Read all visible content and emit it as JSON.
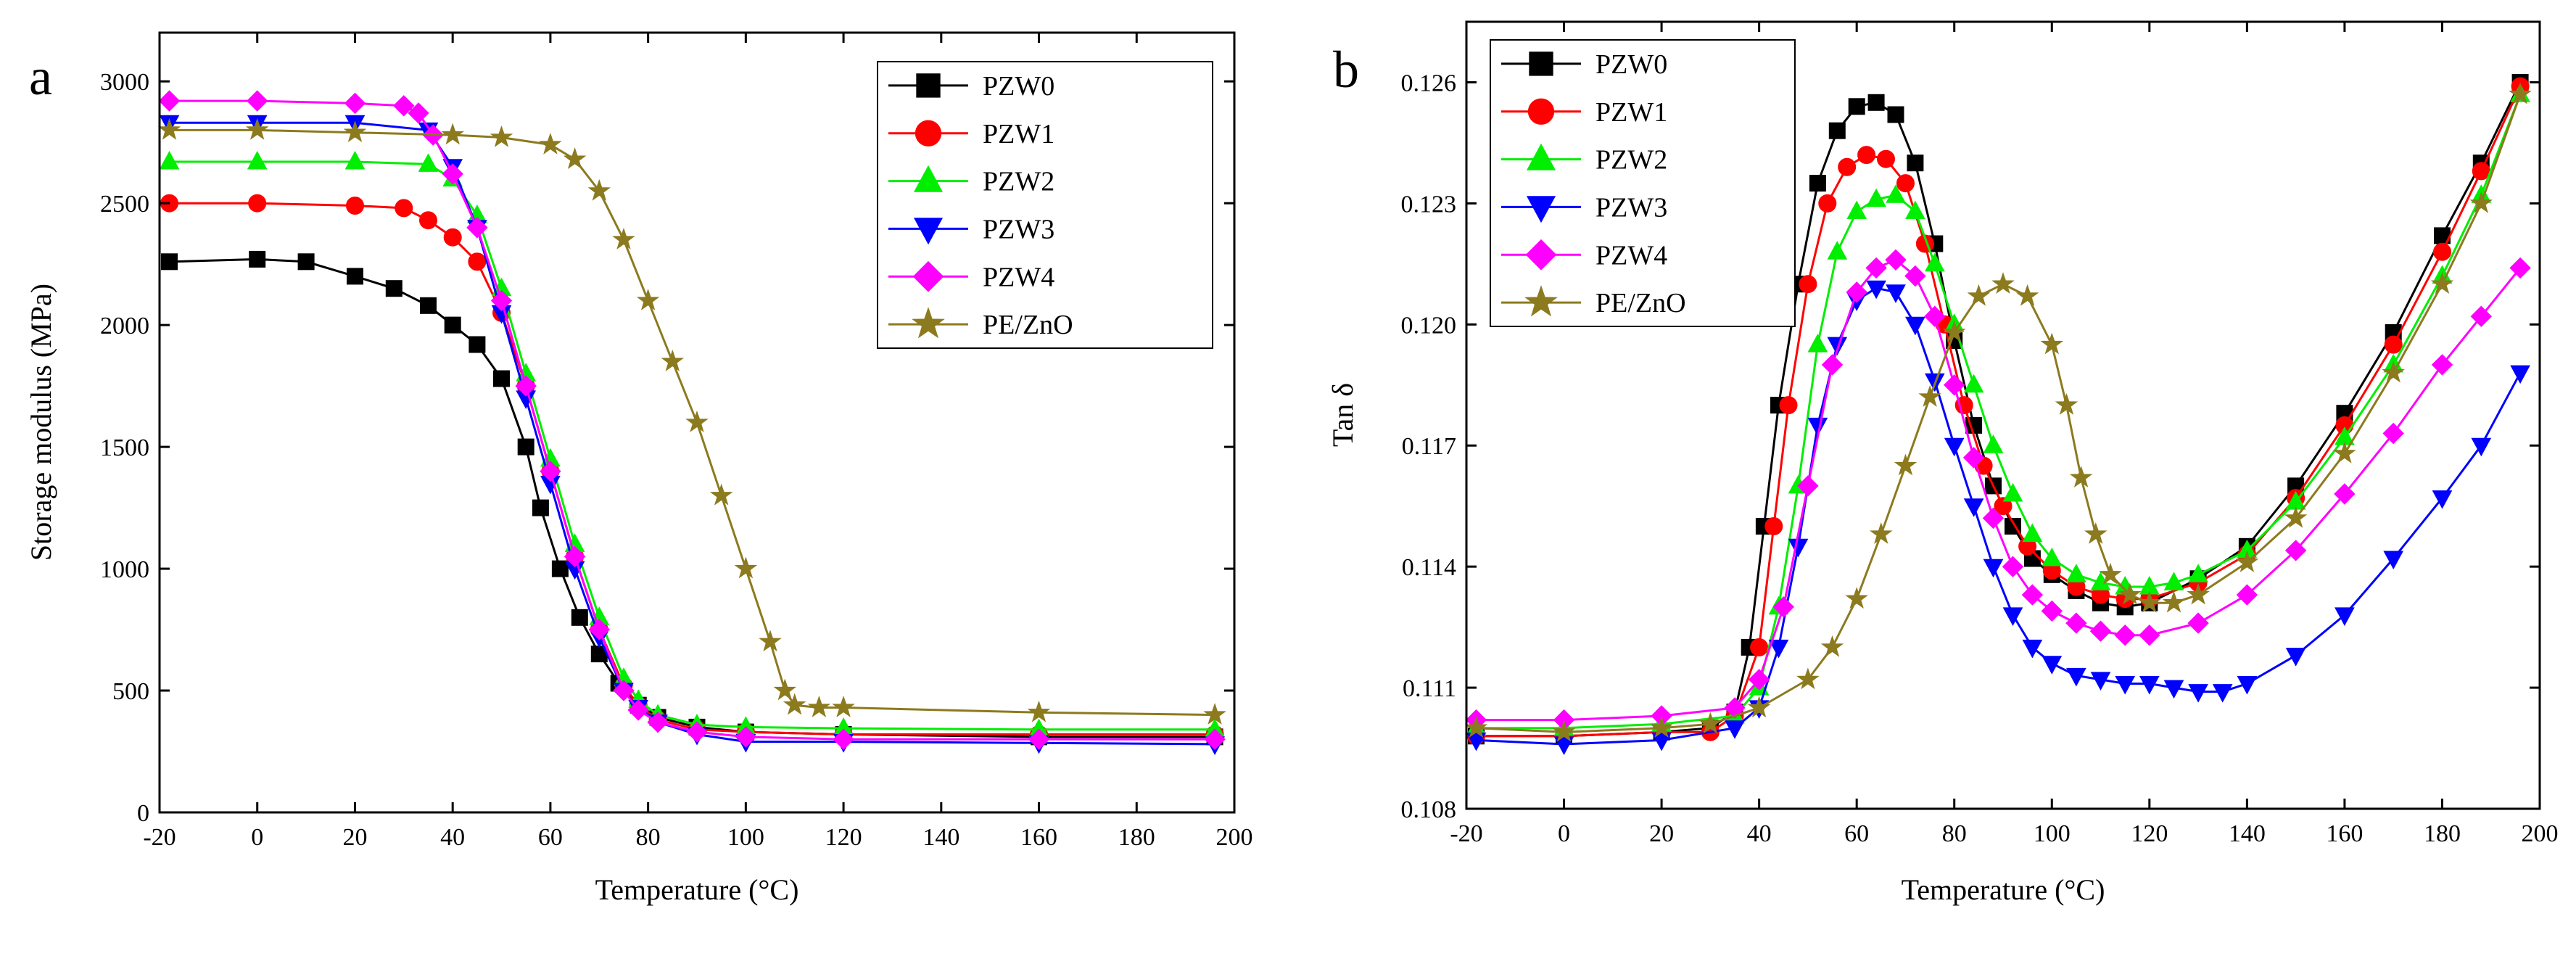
{
  "chart_data": [
    {
      "type": "line",
      "panel": "a",
      "xlabel": "Temperature (°C)",
      "ylabel": "Storage modulus (MPa)",
      "xlim": [
        -20,
        200
      ],
      "ylim": [
        0,
        3200
      ],
      "xticks": [
        -20,
        0,
        20,
        40,
        60,
        80,
        100,
        120,
        140,
        160,
        180,
        200
      ],
      "yticks": [
        0,
        500,
        1000,
        1500,
        2000,
        2500,
        3000
      ],
      "legend_position": "top-right",
      "series": [
        {
          "name": "PZW0",
          "color": "#000000",
          "marker": "square",
          "x": [
            -18,
            0,
            10,
            20,
            28,
            35,
            40,
            45,
            50,
            55,
            58,
            62,
            66,
            70,
            74,
            78,
            82,
            90,
            100,
            120,
            160,
            196
          ],
          "y": [
            2260,
            2270,
            2260,
            2200,
            2150,
            2080,
            2000,
            1920,
            1780,
            1500,
            1250,
            1000,
            800,
            650,
            530,
            440,
            390,
            350,
            330,
            320,
            310,
            310
          ]
        },
        {
          "name": "PZW1",
          "color": "#ff0000",
          "marker": "circle",
          "x": [
            -18,
            0,
            20,
            30,
            35,
            40,
            45,
            50,
            55,
            60,
            65,
            70,
            75,
            78,
            82,
            90,
            100,
            120,
            160,
            196
          ],
          "y": [
            2500,
            2500,
            2490,
            2480,
            2430,
            2360,
            2260,
            2050,
            1750,
            1400,
            1050,
            750,
            520,
            440,
            380,
            340,
            330,
            320,
            320,
            320
          ]
        },
        {
          "name": "PZW2",
          "color": "#00ee00",
          "marker": "triangle-up",
          "x": [
            -18,
            0,
            20,
            35,
            40,
            45,
            50,
            55,
            60,
            65,
            70,
            75,
            78,
            82,
            90,
            100,
            120,
            160,
            196
          ],
          "y": [
            2670,
            2670,
            2670,
            2660,
            2600,
            2450,
            2150,
            1800,
            1450,
            1100,
            800,
            550,
            460,
            400,
            360,
            350,
            345,
            340,
            340
          ]
        },
        {
          "name": "PZW3",
          "color": "#0000ff",
          "marker": "triangle-down",
          "x": [
            -18,
            0,
            20,
            35,
            40,
            45,
            50,
            55,
            60,
            65,
            70,
            75,
            78,
            82,
            90,
            100,
            120,
            160,
            196
          ],
          "y": [
            2830,
            2830,
            2830,
            2800,
            2650,
            2400,
            2050,
            1700,
            1350,
            1000,
            720,
            500,
            430,
            370,
            320,
            290,
            290,
            285,
            280
          ]
        },
        {
          "name": "PZW4",
          "color": "#ff00ff",
          "marker": "diamond",
          "x": [
            -18,
            0,
            20,
            30,
            33,
            36,
            40,
            45,
            50,
            55,
            60,
            65,
            70,
            75,
            78,
            82,
            90,
            100,
            120,
            160,
            196
          ],
          "y": [
            2920,
            2920,
            2910,
            2900,
            2870,
            2780,
            2620,
            2400,
            2100,
            1750,
            1400,
            1050,
            750,
            500,
            420,
            370,
            330,
            310,
            300,
            300,
            300
          ]
        },
        {
          "name": "PE/ZnO",
          "color": "#8c7a1e",
          "marker": "star",
          "x": [
            -18,
            0,
            20,
            40,
            50,
            60,
            65,
            70,
            75,
            80,
            85,
            90,
            95,
            100,
            105,
            108,
            110,
            115,
            120,
            160,
            196
          ],
          "y": [
            2800,
            2800,
            2790,
            2780,
            2770,
            2740,
            2680,
            2550,
            2350,
            2100,
            1850,
            1600,
            1300,
            1000,
            700,
            500,
            440,
            430,
            430,
            410,
            400
          ]
        }
      ]
    },
    {
      "type": "line",
      "panel": "b",
      "xlabel": "Temperature (°C)",
      "ylabel": "Tan δ",
      "xlim": [
        -20,
        200
      ],
      "ylim": [
        0.108,
        0.1275
      ],
      "xticks": [
        -20,
        0,
        20,
        40,
        60,
        80,
        100,
        120,
        140,
        160,
        180,
        200
      ],
      "yticks": [
        0.108,
        0.111,
        0.114,
        0.117,
        0.12,
        0.123,
        0.126
      ],
      "ytick_labels": [
        "0.108",
        "0.111",
        "0.114",
        "0.117",
        "0.120",
        "0.123",
        "0.126"
      ],
      "legend_position": "top-left",
      "series": [
        {
          "name": "PZW0",
          "color": "#000000",
          "marker": "square",
          "x": [
            -18,
            0,
            20,
            30,
            35,
            38,
            41,
            44,
            48,
            52,
            56,
            60,
            64,
            68,
            72,
            76,
            80,
            84,
            88,
            92,
            96,
            100,
            105,
            110,
            115,
            120,
            130,
            140,
            150,
            160,
            170,
            180,
            188,
            196
          ],
          "y": [
            0.1098,
            0.1098,
            0.1099,
            0.11,
            0.1104,
            0.112,
            0.115,
            0.118,
            0.121,
            0.1235,
            0.1248,
            0.1254,
            0.1255,
            0.1252,
            0.124,
            0.122,
            0.1196,
            0.1175,
            0.116,
            0.115,
            0.1142,
            0.1138,
            0.1134,
            0.1131,
            0.113,
            0.1131,
            0.1137,
            0.1145,
            0.116,
            0.1178,
            0.1198,
            0.1222,
            0.124,
            0.126
          ]
        },
        {
          "name": "PZW1",
          "color": "#ff0000",
          "marker": "circle",
          "x": [
            -18,
            0,
            20,
            30,
            35,
            40,
            43,
            46,
            50,
            54,
            58,
            62,
            66,
            70,
            74,
            78,
            82,
            86,
            90,
            95,
            100,
            105,
            110,
            115,
            120,
            130,
            140,
            150,
            160,
            170,
            180,
            188,
            196
          ],
          "y": [
            0.1098,
            0.1098,
            0.1099,
            0.1099,
            0.1103,
            0.112,
            0.115,
            0.118,
            0.121,
            0.123,
            0.1239,
            0.1242,
            0.1241,
            0.1235,
            0.122,
            0.12,
            0.118,
            0.1165,
            0.1155,
            0.1145,
            0.1139,
            0.1135,
            0.1133,
            0.1132,
            0.1132,
            0.1136,
            0.1143,
            0.1157,
            0.1175,
            0.1195,
            0.1218,
            0.1238,
            0.1259
          ]
        },
        {
          "name": "PZW2",
          "color": "#00ee00",
          "marker": "triangle-up",
          "x": [
            -18,
            0,
            20,
            35,
            40,
            44,
            48,
            52,
            56,
            60,
            64,
            68,
            72,
            76,
            80,
            84,
            88,
            92,
            96,
            100,
            105,
            110,
            115,
            120,
            125,
            130,
            140,
            150,
            160,
            170,
            180,
            188,
            196
          ],
          "y": [
            0.11,
            0.11,
            0.1101,
            0.1103,
            0.111,
            0.113,
            0.116,
            0.1195,
            0.1218,
            0.1228,
            0.1231,
            0.1232,
            0.1228,
            0.1215,
            0.12,
            0.1185,
            0.117,
            0.1158,
            0.1148,
            0.1142,
            0.1138,
            0.1136,
            0.1135,
            0.1135,
            0.1136,
            0.1138,
            0.1144,
            0.1156,
            0.1172,
            0.119,
            0.1212,
            0.1232,
            0.1257
          ]
        },
        {
          "name": "PZW3",
          "color": "#0000ff",
          "marker": "triangle-down",
          "x": [
            -18,
            0,
            20,
            35,
            40,
            44,
            48,
            52,
            56,
            60,
            64,
            68,
            72,
            76,
            80,
            84,
            88,
            92,
            96,
            100,
            105,
            110,
            115,
            120,
            125,
            130,
            135,
            140,
            150,
            160,
            170,
            180,
            188,
            196
          ],
          "y": [
            0.1097,
            0.1096,
            0.1097,
            0.11,
            0.1105,
            0.112,
            0.1145,
            0.1175,
            0.1195,
            0.1206,
            0.1209,
            0.1208,
            0.12,
            0.1186,
            0.117,
            0.1155,
            0.114,
            0.1128,
            0.112,
            0.1116,
            0.1113,
            0.1112,
            0.1111,
            0.1111,
            0.111,
            0.1109,
            0.1109,
            0.1111,
            0.1118,
            0.1128,
            0.1142,
            0.1157,
            0.117,
            0.1188
          ]
        },
        {
          "name": "PZW4",
          "color": "#ff00ff",
          "marker": "diamond",
          "x": [
            -18,
            0,
            20,
            35,
            40,
            45,
            50,
            55,
            60,
            64,
            68,
            72,
            76,
            80,
            84,
            88,
            92,
            96,
            100,
            105,
            110,
            115,
            120,
            130,
            140,
            150,
            160,
            170,
            180,
            188,
            196
          ],
          "y": [
            0.1102,
            0.1102,
            0.1103,
            0.1105,
            0.1112,
            0.113,
            0.116,
            0.119,
            0.1208,
            0.1214,
            0.1216,
            0.1212,
            0.1202,
            0.1185,
            0.1167,
            0.1152,
            0.114,
            0.1133,
            0.1129,
            0.1126,
            0.1124,
            0.1123,
            0.1123,
            0.1126,
            0.1133,
            0.1144,
            0.1158,
            0.1173,
            0.119,
            0.1202,
            0.1214
          ]
        },
        {
          "name": "PE/ZnO",
          "color": "#8c7a1e",
          "marker": "star",
          "x": [
            -18,
            0,
            20,
            30,
            40,
            50,
            55,
            60,
            65,
            70,
            75,
            80,
            85,
            90,
            95,
            100,
            103,
            106,
            109,
            112,
            116,
            120,
            125,
            130,
            140,
            150,
            160,
            170,
            180,
            188,
            196
          ],
          "y": [
            0.11,
            0.1099,
            0.11,
            0.1101,
            0.1105,
            0.1112,
            0.112,
            0.1132,
            0.1148,
            0.1165,
            0.1182,
            0.1198,
            0.1207,
            0.121,
            0.1207,
            0.1195,
            0.118,
            0.1162,
            0.1148,
            0.1138,
            0.1133,
            0.1131,
            0.1131,
            0.1133,
            0.1141,
            0.1152,
            0.1168,
            0.1188,
            0.121,
            0.123,
            0.1257
          ]
        }
      ]
    }
  ]
}
